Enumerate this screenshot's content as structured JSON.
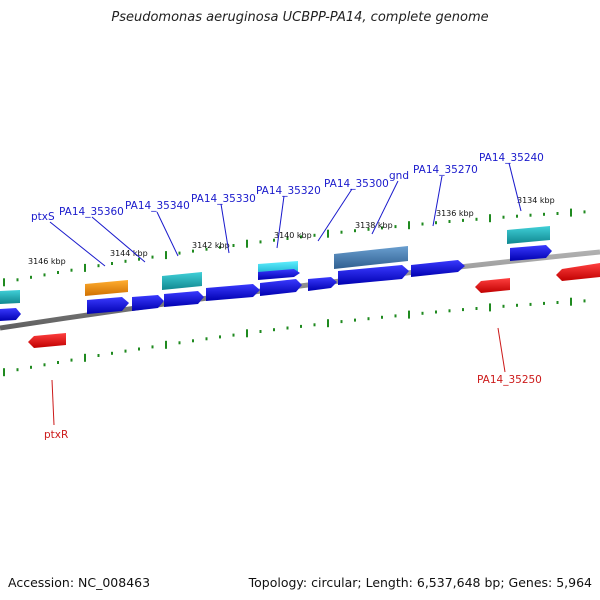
{
  "title": "Pseudomonas aeruginosa UCBPP-PA14, complete genome",
  "footer": {
    "accession": "Accession: NC_008463",
    "summary": "Topology: circular; Length: 6,537,648 bp; Genes: 5,964"
  },
  "tick_labels": [
    "3146 kbp",
    "3144 kbp",
    "3142 kbp",
    "3140 kbp",
    "3138 kbp",
    "3136 kbp",
    "3134 kbp"
  ],
  "gene_labels_forward": [
    "ptxS",
    "PA14_35360",
    "PA14_35340",
    "PA14_35330",
    "PA14_35320",
    "PA14_35300",
    "gnd",
    "PA14_35270",
    "PA14_35240"
  ],
  "gene_labels_reverse": [
    "PA14_35250",
    "ptxR"
  ],
  "colors": {
    "forward_gene": "#1010dd",
    "reverse_gene": "#ee1010",
    "forward_label": "#1a1acc",
    "reverse_label": "#cc1a1a",
    "backbone": "#808080",
    "ticks": "#1f8a1f",
    "cog_orange": "#f08c00",
    "cog_teal": "#20b0b8",
    "cog_cyan": "#20d8ee",
    "cog_steel": "#4a7fb5"
  }
}
